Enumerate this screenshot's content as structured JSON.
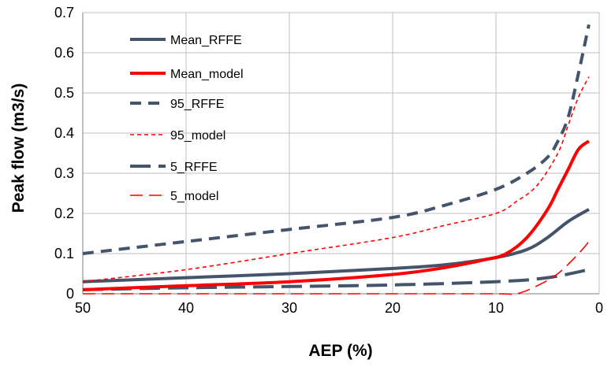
{
  "chart_data": {
    "type": "line",
    "xlabel": "AEP (%)",
    "ylabel": "Peak flow (m3/s)",
    "xlim": [
      50,
      0
    ],
    "ylim": [
      0,
      0.7
    ],
    "x_reversed": true,
    "grid": true,
    "legend_position": "top-left",
    "x_ticks": [
      "50",
      "40",
      "30",
      "20",
      "10",
      "0"
    ],
    "y_ticks": [
      "0",
      "0.1",
      "0.2",
      "0.3",
      "0.4",
      "0.5",
      "0.6",
      "0.7"
    ],
    "series": [
      {
        "name": "Mean_RFFE",
        "color": "#44546A",
        "style": "solid-thick",
        "points": [
          [
            50,
            0.03
          ],
          [
            40,
            0.04
          ],
          [
            30,
            0.05
          ],
          [
            20,
            0.063
          ],
          [
            15,
            0.072
          ],
          [
            10,
            0.09
          ],
          [
            7,
            0.11
          ],
          [
            5,
            0.14
          ],
          [
            3,
            0.18
          ],
          [
            1,
            0.21
          ]
        ]
      },
      {
        "name": "Mean_model",
        "color": "#FF0000",
        "style": "solid-thick",
        "points": [
          [
            50,
            0.01
          ],
          [
            40,
            0.02
          ],
          [
            30,
            0.03
          ],
          [
            20,
            0.048
          ],
          [
            15,
            0.065
          ],
          [
            11,
            0.085
          ],
          [
            9,
            0.1
          ],
          [
            7,
            0.14
          ],
          [
            5,
            0.21
          ],
          [
            4,
            0.26
          ],
          [
            3,
            0.31
          ],
          [
            2,
            0.36
          ],
          [
            1,
            0.38
          ]
        ]
      },
      {
        "name": "95_RFFE",
        "color": "#44546A",
        "style": "dashed-thick",
        "points": [
          [
            50,
            0.1
          ],
          [
            40,
            0.13
          ],
          [
            30,
            0.16
          ],
          [
            20,
            0.19
          ],
          [
            15,
            0.22
          ],
          [
            10,
            0.26
          ],
          [
            7,
            0.3
          ],
          [
            5,
            0.34
          ],
          [
            4,
            0.38
          ],
          [
            3,
            0.44
          ],
          [
            2,
            0.55
          ],
          [
            1,
            0.67
          ]
        ]
      },
      {
        "name": "95_model",
        "color": "#FF0000",
        "style": "dashed-thin",
        "points": [
          [
            50,
            0.03
          ],
          [
            40,
            0.06
          ],
          [
            30,
            0.1
          ],
          [
            20,
            0.14
          ],
          [
            15,
            0.17
          ],
          [
            10,
            0.2
          ],
          [
            8,
            0.23
          ],
          [
            6,
            0.27
          ],
          [
            4,
            0.35
          ],
          [
            3,
            0.42
          ],
          [
            2,
            0.49
          ],
          [
            1,
            0.54
          ]
        ]
      },
      {
        "name": "5_RFFE",
        "color": "#44546A",
        "style": "long-dash-thick",
        "points": [
          [
            50,
            0.01
          ],
          [
            40,
            0.015
          ],
          [
            30,
            0.018
          ],
          [
            20,
            0.022
          ],
          [
            10,
            0.03
          ],
          [
            5,
            0.04
          ],
          [
            1,
            0.06
          ]
        ]
      },
      {
        "name": "5_model",
        "color": "#FF0000",
        "style": "long-dash-thin",
        "points": [
          [
            50,
            0.0
          ],
          [
            40,
            0.0
          ],
          [
            30,
            0.0
          ],
          [
            20,
            0.0
          ],
          [
            10,
            0.0
          ],
          [
            8,
            0.0
          ],
          [
            6,
            0.02
          ],
          [
            4,
            0.05
          ],
          [
            2,
            0.1
          ],
          [
            1,
            0.13
          ]
        ]
      }
    ]
  }
}
